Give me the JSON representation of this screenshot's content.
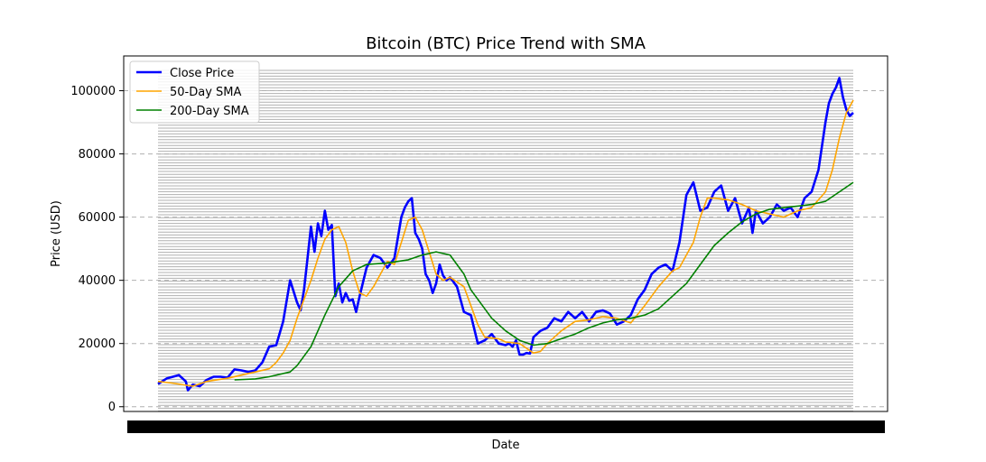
{
  "chart_data": {
    "type": "line",
    "title": "Bitcoin (BTC) Price Trend with SMA",
    "xlabel": "Date",
    "ylabel": "Price (USD)",
    "x_range": [
      0,
      1
    ],
    "ylim": [
      -1500,
      111000
    ],
    "yticks": [
      0,
      20000,
      40000,
      60000,
      80000,
      100000
    ],
    "ytick_labels": [
      "0",
      "20000",
      "40000",
      "60000",
      "80000",
      "100000"
    ],
    "grid": {
      "y": true,
      "style": "dashed"
    },
    "legend_position": "upper-left",
    "series": [
      {
        "name": "Close Price",
        "color": "#0000ff",
        "x": [
          0.0,
          0.013,
          0.03,
          0.04,
          0.043,
          0.05,
          0.06,
          0.07,
          0.08,
          0.09,
          0.1,
          0.11,
          0.12,
          0.13,
          0.14,
          0.15,
          0.16,
          0.17,
          0.18,
          0.19,
          0.2,
          0.205,
          0.21,
          0.215,
          0.22,
          0.225,
          0.23,
          0.235,
          0.24,
          0.245,
          0.25,
          0.255,
          0.26,
          0.265,
          0.27,
          0.275,
          0.28,
          0.285,
          0.29,
          0.3,
          0.31,
          0.32,
          0.33,
          0.34,
          0.35,
          0.355,
          0.36,
          0.365,
          0.37,
          0.375,
          0.38,
          0.385,
          0.39,
          0.395,
          0.4,
          0.405,
          0.41,
          0.415,
          0.42,
          0.43,
          0.44,
          0.45,
          0.46,
          0.47,
          0.48,
          0.49,
          0.5,
          0.505,
          0.51,
          0.515,
          0.52,
          0.525,
          0.53,
          0.535,
          0.54,
          0.55,
          0.56,
          0.57,
          0.58,
          0.59,
          0.6,
          0.61,
          0.62,
          0.63,
          0.64,
          0.65,
          0.66,
          0.67,
          0.68,
          0.69,
          0.7,
          0.71,
          0.72,
          0.73,
          0.74,
          0.75,
          0.76,
          0.77,
          0.78,
          0.79,
          0.8,
          0.81,
          0.82,
          0.83,
          0.84,
          0.85,
          0.855,
          0.86,
          0.87,
          0.88,
          0.89,
          0.9,
          0.91,
          0.92,
          0.93,
          0.94,
          0.95,
          0.96,
          0.965,
          0.97,
          0.975,
          0.98,
          0.985,
          0.99,
          0.995,
          1.0
        ],
        "values": [
          7200,
          9000,
          10000,
          8000,
          5200,
          7000,
          6500,
          8500,
          9500,
          9500,
          9200,
          11800,
          11500,
          11000,
          11500,
          14000,
          19000,
          19500,
          27000,
          40000,
          33000,
          30500,
          37000,
          47000,
          57000,
          49000,
          58000,
          54000,
          62000,
          56000,
          57500,
          35000,
          39000,
          33000,
          36000,
          33500,
          34000,
          30000,
          35000,
          44000,
          48000,
          47000,
          44000,
          47000,
          60000,
          63000,
          65000,
          66000,
          55000,
          53000,
          50000,
          42000,
          40000,
          36000,
          39000,
          45000,
          41500,
          40000,
          41000,
          38000,
          30000,
          29000,
          20000,
          21000,
          23000,
          20000,
          19500,
          20000,
          19000,
          21000,
          16500,
          16500,
          17000,
          16800,
          22000,
          24000,
          25000,
          28000,
          27000,
          30000,
          28000,
          30000,
          27000,
          30000,
          30500,
          29500,
          26000,
          27000,
          29000,
          34000,
          37000,
          42000,
          44000,
          45000,
          43000,
          52000,
          67000,
          71000,
          62000,
          63000,
          68000,
          70000,
          62000,
          66000,
          58000,
          63000,
          55000,
          62000,
          58000,
          60000,
          64000,
          62000,
          63000,
          60000,
          66000,
          68000,
          75000,
          90000,
          96000,
          99000,
          101000,
          104000,
          98000,
          94000,
          92000,
          93000
        ]
      },
      {
        "name": "50-Day SMA",
        "color": "#ffa500",
        "x": [
          0.0,
          0.02,
          0.05,
          0.07,
          0.1,
          0.12,
          0.14,
          0.16,
          0.17,
          0.18,
          0.19,
          0.2,
          0.21,
          0.22,
          0.23,
          0.24,
          0.25,
          0.26,
          0.27,
          0.28,
          0.29,
          0.3,
          0.31,
          0.33,
          0.34,
          0.35,
          0.36,
          0.37,
          0.38,
          0.39,
          0.4,
          0.41,
          0.42,
          0.44,
          0.45,
          0.46,
          0.47,
          0.49,
          0.5,
          0.52,
          0.54,
          0.55,
          0.56,
          0.58,
          0.6,
          0.62,
          0.64,
          0.66,
          0.68,
          0.7,
          0.72,
          0.74,
          0.75,
          0.77,
          0.78,
          0.79,
          0.8,
          0.82,
          0.84,
          0.86,
          0.88,
          0.9,
          0.92,
          0.94,
          0.96,
          0.97,
          0.98,
          0.99,
          1.0
        ],
        "values": [
          8000,
          7500,
          6500,
          8000,
          9000,
          10000,
          11000,
          12000,
          14000,
          17000,
          21000,
          28000,
          34000,
          40000,
          47000,
          53000,
          56000,
          57000,
          52000,
          43000,
          36000,
          35000,
          38000,
          46000,
          45000,
          52000,
          59000,
          60000,
          56000,
          49000,
          42000,
          40000,
          41000,
          38000,
          32000,
          26000,
          22000,
          21500,
          20500,
          20000,
          17000,
          17500,
          20000,
          24000,
          27000,
          27500,
          28500,
          28000,
          26500,
          32000,
          38000,
          43000,
          44000,
          52000,
          60000,
          66000,
          66000,
          65500,
          64000,
          62000,
          61000,
          60000,
          62000,
          63000,
          68000,
          75000,
          85000,
          93000,
          97000
        ]
      },
      {
        "name": "200-Day SMA",
        "color": "#008000",
        "x": [
          0.11,
          0.14,
          0.16,
          0.19,
          0.2,
          0.22,
          0.24,
          0.26,
          0.28,
          0.3,
          0.33,
          0.36,
          0.38,
          0.4,
          0.42,
          0.44,
          0.45,
          0.46,
          0.47,
          0.48,
          0.5,
          0.52,
          0.54,
          0.56,
          0.58,
          0.6,
          0.62,
          0.64,
          0.66,
          0.68,
          0.7,
          0.72,
          0.74,
          0.76,
          0.78,
          0.8,
          0.82,
          0.84,
          0.86,
          0.88,
          0.9,
          0.92,
          0.94,
          0.96,
          0.98,
          1.0
        ],
        "values": [
          8500,
          8800,
          9500,
          11000,
          13000,
          19000,
          29000,
          38000,
          43000,
          45000,
          45500,
          46500,
          48000,
          49000,
          48000,
          42000,
          37000,
          34000,
          31000,
          28000,
          24000,
          21000,
          19500,
          20000,
          21500,
          23000,
          25000,
          26500,
          27500,
          28000,
          29000,
          31000,
          35000,
          39000,
          45000,
          51000,
          55000,
          58500,
          61000,
          62500,
          63000,
          63500,
          64000,
          65000,
          68000,
          71000
        ]
      }
    ]
  }
}
